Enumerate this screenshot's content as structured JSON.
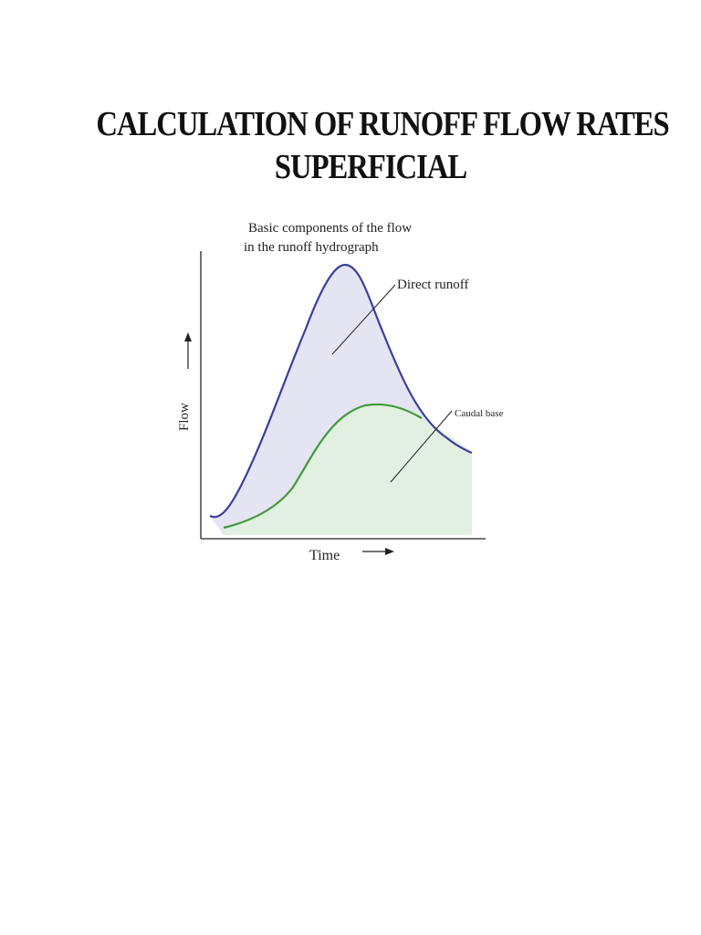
{
  "page": {
    "title_line1": "CALCULATION OF RUNOFF FLOW RATES",
    "title_line2": "SUPERFICIAL"
  },
  "figure": {
    "caption_line1": "Basic components of the flow",
    "caption_line2": "in the runoff hydrograph",
    "y_axis_label": "Flow",
    "x_axis_label": "Time",
    "label_direct_runoff": "Direct runoff",
    "label_base_flow": "Caudal base",
    "colors": {
      "direct_runoff_curve": "#3b3f9e",
      "direct_runoff_fill": "#e4e4f3",
      "base_flow_curve": "#3f9a3a",
      "base_flow_fill": "#e1f0e0",
      "axes": "#222222"
    }
  }
}
